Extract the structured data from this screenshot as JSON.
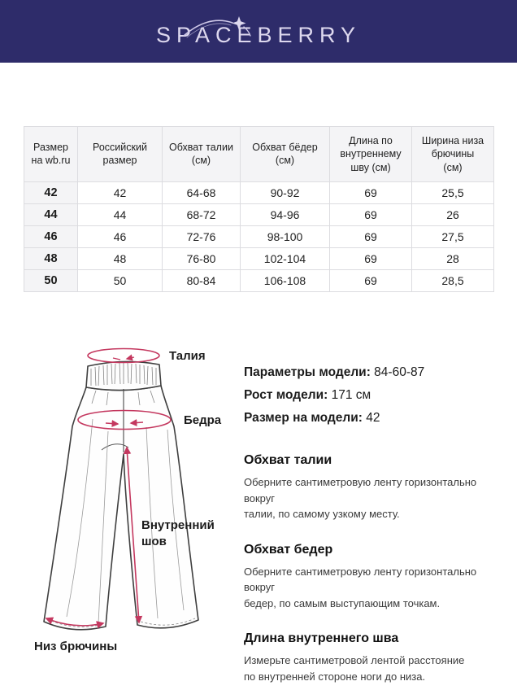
{
  "brand": {
    "logo_text": "SPACEBERRY",
    "header_bg": "#2e2c6a"
  },
  "size_table": {
    "columns": [
      "Размер\nна wb.ru",
      "Российский\nразмер",
      "Обхват талии\n(см)",
      "Обхват бёдер\n(см)",
      "Длина по\nвнутреннему\nшву (см)",
      "Ширина низа\nбрючины\n(см)"
    ],
    "rows": [
      [
        "42",
        "42",
        "64-68",
        "90-92",
        "69",
        "25,5"
      ],
      [
        "44",
        "44",
        "68-72",
        "94-96",
        "69",
        "26"
      ],
      [
        "46",
        "46",
        "72-76",
        "98-100",
        "69",
        "27,5"
      ],
      [
        "48",
        "48",
        "76-80",
        "102-104",
        "69",
        "28"
      ],
      [
        "50",
        "50",
        "80-84",
        "106-108",
        "69",
        "28,5"
      ]
    ]
  },
  "diagram": {
    "labels": {
      "waist": "Талия",
      "hips": "Бедра",
      "inseam_lines": [
        "Внутренний",
        "шов"
      ],
      "hem": "Низ брючины"
    },
    "accent_color": "#c4385f"
  },
  "model_info": [
    {
      "label": "Параметры модели:",
      "value": "84-60-87"
    },
    {
      "label": "Рост модели:",
      "value": "171 см"
    },
    {
      "label": "Размер на модели:",
      "value": "42"
    }
  ],
  "measure_sections": [
    {
      "title": "Обхват талии",
      "text": "Оберните сантиметровую ленту горизонтально вокруг\nталии, по самому узкому месту."
    },
    {
      "title": "Обхват бедер",
      "text": "Оберните сантиметровую ленту горизонтально вокруг\nбедер, по самым выступающим точкам."
    },
    {
      "title": "Длина внутреннего шва",
      "text": "Измерьте сантиметровой лентой расстояние\nпо внутренней стороне ноги до низа."
    }
  ]
}
